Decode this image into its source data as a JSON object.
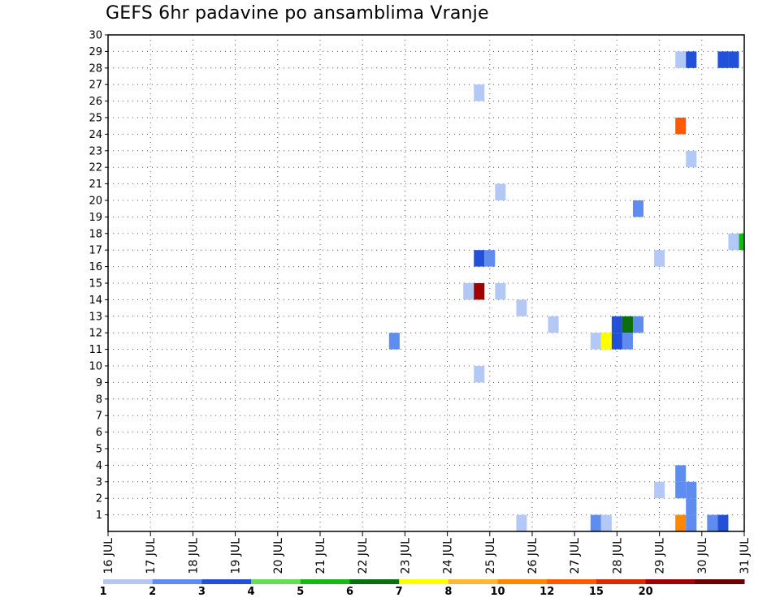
{
  "chart_data": {
    "type": "heatmap",
    "title": "GEFS 6hr padavine po ansamblima Vranje",
    "xlabel": "",
    "ylabel": "",
    "x_ticks": [
      "16 JUL",
      "17 JUL",
      "18 JUL",
      "19 JUL",
      "20 JUL",
      "21 JUL",
      "22 JUL",
      "23 JUL",
      "24 JUL",
      "25 JUL",
      "26 JUL",
      "27 JUL",
      "28 JUL",
      "29 JUL",
      "30 JUL",
      "31 JUL"
    ],
    "x_range_days": [
      16,
      31
    ],
    "y_ticks": [
      1,
      2,
      3,
      4,
      5,
      6,
      7,
      8,
      9,
      10,
      11,
      12,
      13,
      14,
      15,
      16,
      17,
      18,
      19,
      20,
      21,
      22,
      23,
      24,
      25,
      26,
      27,
      28,
      29,
      30
    ],
    "y_range": [
      0,
      30
    ],
    "grid": true,
    "colorbar": {
      "labels": [
        "1",
        "2",
        "3",
        "4",
        "5",
        "6",
        "7",
        "8",
        "10",
        "12",
        "15",
        "20"
      ],
      "colors": [
        "#b3c8f4",
        "#5f8cef",
        "#2250d9",
        "#66dd55",
        "#19b619",
        "#0c6e0c",
        "#ffff00",
        "#ffb833",
        "#ff8800",
        "#ff5a00",
        "#d92a00",
        "#a00000",
        "#6b0000"
      ]
    },
    "cells": [
      {
        "day": 29.5,
        "member": 29,
        "level": 1
      },
      {
        "day": 29.75,
        "member": 29,
        "level": 3
      },
      {
        "day": 30.5,
        "member": 29,
        "level": 3
      },
      {
        "day": 30.75,
        "member": 29,
        "level": 3
      },
      {
        "day": 24.75,
        "member": 27,
        "level": 1
      },
      {
        "day": 29.5,
        "member": 25,
        "level": 12
      },
      {
        "day": 29.75,
        "member": 23,
        "level": 1
      },
      {
        "day": 25.25,
        "member": 21,
        "level": 1
      },
      {
        "day": 28.5,
        "member": 20,
        "level": 2
      },
      {
        "day": 30.75,
        "member": 18,
        "level": 1
      },
      {
        "day": 31.0,
        "member": 18,
        "level": 5
      },
      {
        "day": 24.75,
        "member": 17,
        "level": 3
      },
      {
        "day": 25.0,
        "member": 17,
        "level": 2
      },
      {
        "day": 29.0,
        "member": 17,
        "level": 1
      },
      {
        "day": 24.5,
        "member": 15,
        "level": 1
      },
      {
        "day": 24.75,
        "member": 15,
        "level": 20
      },
      {
        "day": 25.25,
        "member": 15,
        "level": 1
      },
      {
        "day": 25.75,
        "member": 14,
        "level": 1
      },
      {
        "day": 26.5,
        "member": 13,
        "level": 1
      },
      {
        "day": 28.0,
        "member": 13,
        "level": 3
      },
      {
        "day": 28.25,
        "member": 13,
        "level": 6
      },
      {
        "day": 28.5,
        "member": 13,
        "level": 2
      },
      {
        "day": 22.75,
        "member": 12,
        "level": 2
      },
      {
        "day": 27.5,
        "member": 12,
        "level": 1
      },
      {
        "day": 27.75,
        "member": 12,
        "level": 7
      },
      {
        "day": 28.0,
        "member": 12,
        "level": 3
      },
      {
        "day": 28.25,
        "member": 12,
        "level": 2
      },
      {
        "day": 24.75,
        "member": 10,
        "level": 1
      },
      {
        "day": 29.5,
        "member": 4,
        "level": 2
      },
      {
        "day": 29.0,
        "member": 3,
        "level": 1
      },
      {
        "day": 29.5,
        "member": 3,
        "level": 2
      },
      {
        "day": 29.75,
        "member": 3,
        "level": 2
      },
      {
        "day": 29.75,
        "member": 2,
        "level": 2
      },
      {
        "day": 25.75,
        "member": 1,
        "level": 1
      },
      {
        "day": 27.5,
        "member": 1,
        "level": 2
      },
      {
        "day": 27.75,
        "member": 1,
        "level": 1
      },
      {
        "day": 29.5,
        "member": 1,
        "level": 10
      },
      {
        "day": 29.75,
        "member": 1,
        "level": 2
      },
      {
        "day": 30.25,
        "member": 1,
        "level": 2
      },
      {
        "day": 30.5,
        "member": 1,
        "level": 3
      }
    ]
  }
}
